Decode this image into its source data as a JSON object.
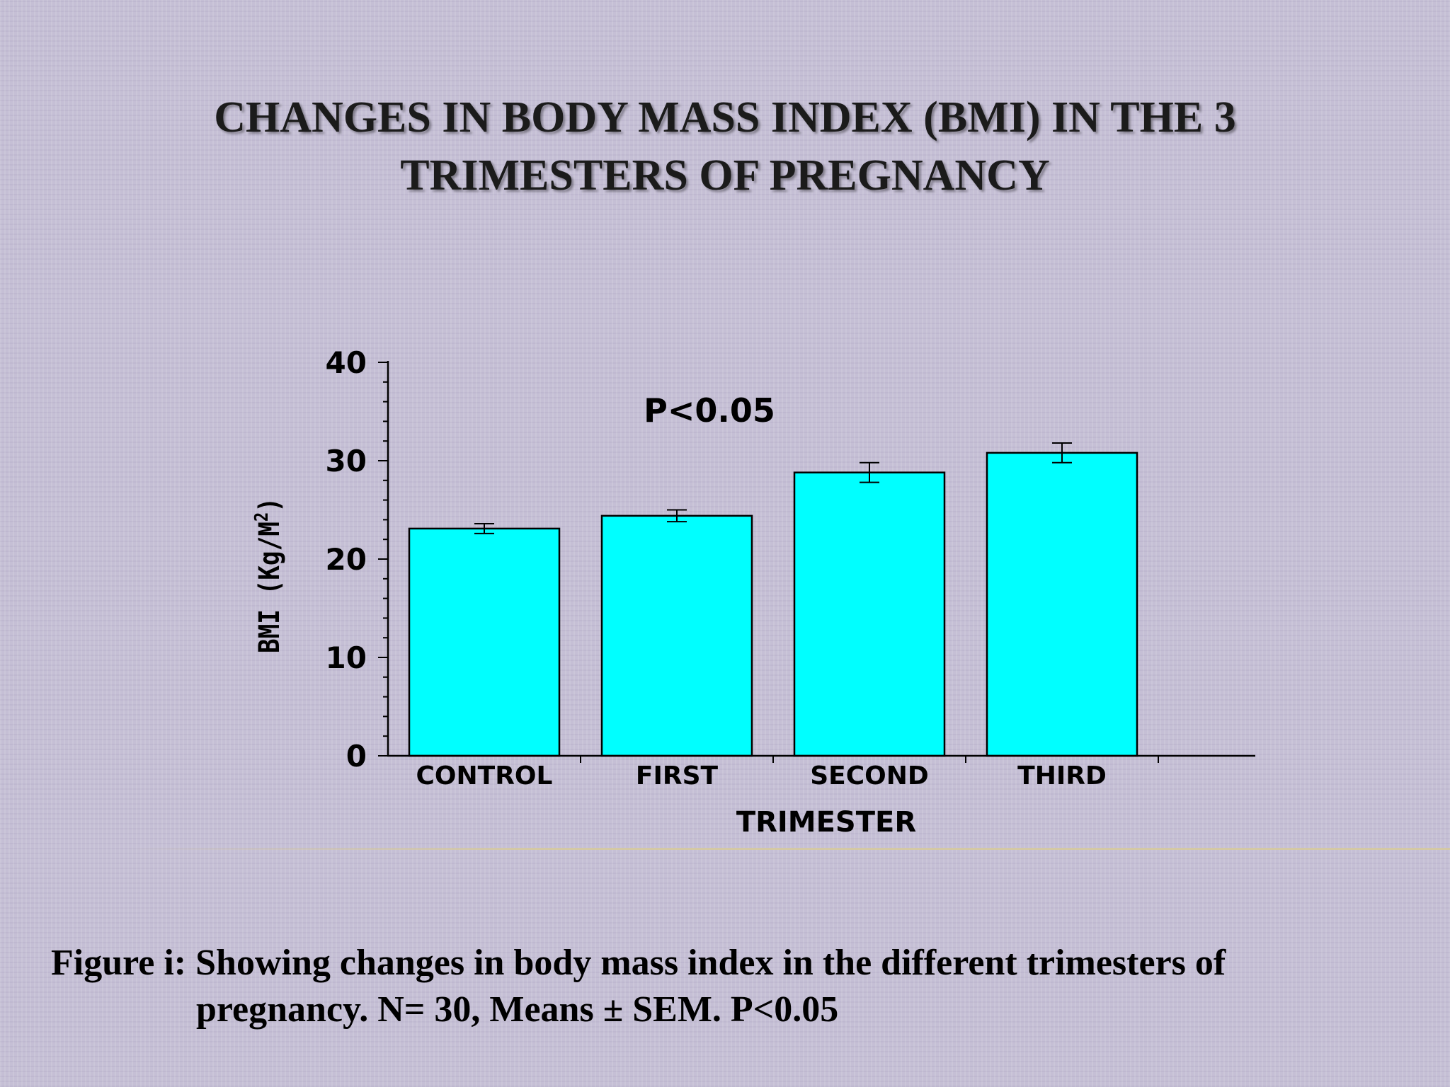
{
  "slide": {
    "title_line1": "CHANGES IN BODY MASS INDEX (BMI) IN THE 3",
    "title_line2": "TRIMESTERS OF PREGNANCY",
    "caption_line1": "Figure i: Showing changes in body mass index in the different trimesters of",
    "caption_line2": "pregnancy. N= 30, Means ± SEM. P<0.05"
  },
  "chart_data": {
    "type": "bar",
    "categories": [
      "CONTROL",
      "FIRST",
      "SECOND",
      "THIRD"
    ],
    "values": [
      23.1,
      24.4,
      28.8,
      30.8
    ],
    "error": [
      0.5,
      0.6,
      1.0,
      1.0
    ],
    "xlabel": "TRIMESTER",
    "ylabel": "BMI (Kg/M",
    "ylabel_superscript": "2",
    "ylabel_suffix": ")",
    "ylim": [
      0,
      40
    ],
    "yticks": [
      "0",
      "10",
      "20",
      "30",
      "40"
    ],
    "annotation": "P<0.05",
    "bar_color": "#00ffff",
    "grid": false
  }
}
